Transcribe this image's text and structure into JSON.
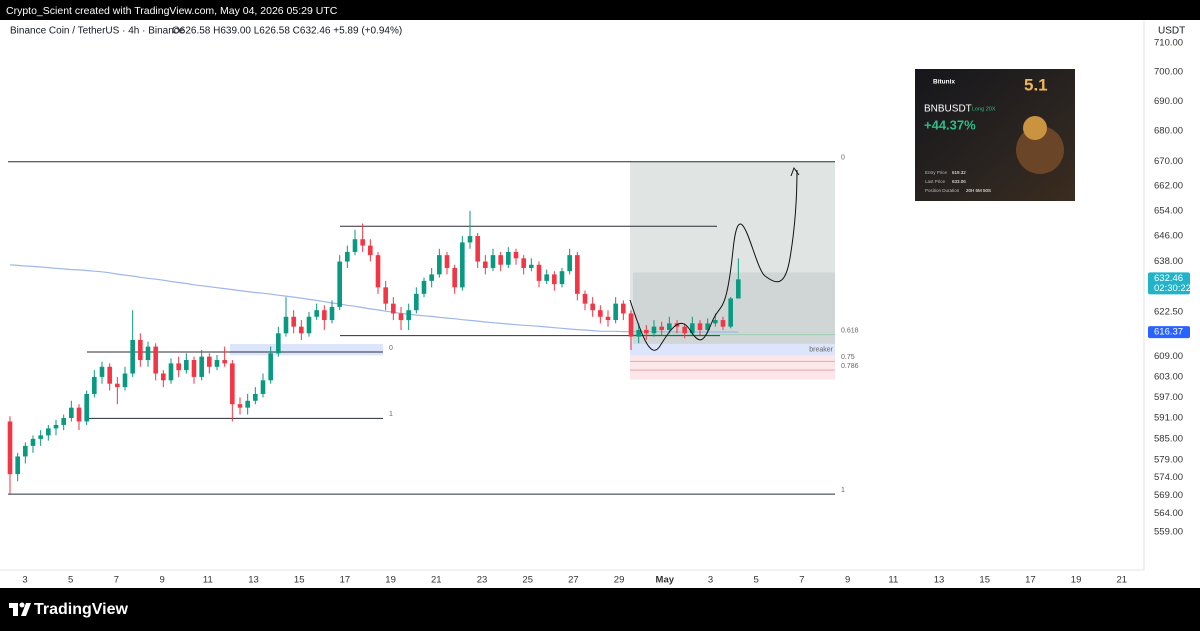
{
  "chart_data": {
    "type": "candlestick",
    "credit": "Crypto_Scient created with TradingView.com, May 04, 2026 05:29 UTC",
    "symbol": "Binance Coin / TetherUS · 4h · Binance",
    "ohlc": "O626.58  H639.00  L626.58  C632.46  +5.89 (+0.94%)",
    "currency": "USDT",
    "countdown": "02:30:22",
    "brand": "TradingView",
    "log_scale": true,
    "grid": false,
    "up_color": "#089981",
    "down_color": "#f23645",
    "ma_color": "#9db7ea",
    "ylim": [
      549.2,
      718
    ],
    "yticks": [
      {
        "value": 710,
        "label": "710.00"
      },
      {
        "value": 700,
        "label": "700.00"
      },
      {
        "value": 690,
        "label": "690.00"
      },
      {
        "value": 680,
        "label": "680.00"
      },
      {
        "value": 670,
        "label": "670.00"
      },
      {
        "value": 662,
        "label": "662.00"
      },
      {
        "value": 654,
        "label": "654.00"
      },
      {
        "value": 646,
        "label": "646.00"
      },
      {
        "value": 638,
        "label": "638.00"
      },
      {
        "value": 622.5,
        "label": "622.50"
      },
      {
        "value": 609,
        "label": "609.00"
      },
      {
        "value": 603,
        "label": "603.00"
      },
      {
        "value": 597,
        "label": "597.00"
      },
      {
        "value": 591,
        "label": "591.00"
      },
      {
        "value": 585,
        "label": "585.00"
      },
      {
        "value": 579,
        "label": "579.00"
      },
      {
        "value": 574,
        "label": "574.00"
      },
      {
        "value": 569,
        "label": "569.00"
      },
      {
        "value": 564,
        "label": "564.00"
      },
      {
        "value": 559,
        "label": "559.00"
      }
    ],
    "x_labels": [
      "3",
      "5",
      "7",
      "9",
      "11",
      "13",
      "15",
      "17",
      "19",
      "21",
      "23",
      "25",
      "27",
      "29",
      "May",
      "3",
      "5",
      "7",
      "9",
      "11",
      "13",
      "15",
      "17",
      "19",
      "21"
    ],
    "candles": [
      [
        590,
        591.5,
        569.5,
        575
      ],
      [
        575,
        581,
        573,
        580
      ],
      [
        580,
        584,
        578,
        583
      ],
      [
        583,
        586,
        581,
        585
      ],
      [
        585,
        587.5,
        583,
        586
      ],
      [
        586,
        589,
        584.5,
        588
      ],
      [
        588,
        590.5,
        586,
        589
      ],
      [
        589,
        592,
        587.5,
        591
      ],
      [
        591,
        596,
        590,
        594
      ],
      [
        594,
        595,
        587.5,
        590
      ],
      [
        590,
        599,
        589,
        598
      ],
      [
        598,
        605,
        597,
        603
      ],
      [
        603,
        607.5,
        601,
        606
      ],
      [
        606,
        607,
        599,
        601
      ],
      [
        601,
        603,
        595,
        600
      ],
      [
        600,
        606,
        599,
        604
      ],
      [
        604,
        623,
        603,
        614
      ],
      [
        614,
        616,
        606,
        608
      ],
      [
        608,
        613.5,
        606,
        612
      ],
      [
        612,
        613,
        602,
        604
      ],
      [
        604,
        605,
        600,
        602
      ],
      [
        602,
        608.5,
        601,
        607
      ],
      [
        607,
        609,
        603,
        605
      ],
      [
        605,
        610,
        604,
        608
      ],
      [
        608,
        609,
        601,
        603
      ],
      [
        603,
        611,
        602,
        609
      ],
      [
        609,
        610,
        604,
        606
      ],
      [
        606,
        609.5,
        605,
        608
      ],
      [
        608,
        612,
        606,
        607
      ],
      [
        607,
        608,
        590,
        595
      ],
      [
        595,
        597,
        592,
        594
      ],
      [
        594,
        598,
        592,
        596
      ],
      [
        596,
        600,
        595,
        598
      ],
      [
        598,
        604,
        597,
        602
      ],
      [
        602,
        612,
        601,
        610
      ],
      [
        610,
        618,
        609,
        616
      ],
      [
        616,
        627,
        615,
        621
      ],
      [
        621,
        623,
        616,
        618
      ],
      [
        618,
        620,
        614,
        616
      ],
      [
        616,
        622.5,
        615,
        621
      ],
      [
        621,
        625,
        620,
        623
      ],
      [
        623,
        624.5,
        617,
        620
      ],
      [
        620,
        626,
        619,
        624
      ],
      [
        624,
        640,
        623,
        638
      ],
      [
        638,
        643,
        636,
        641
      ],
      [
        641,
        648,
        640,
        645
      ],
      [
        645,
        650,
        641,
        643
      ],
      [
        643,
        645,
        638,
        640
      ],
      [
        640,
        641,
        628,
        630
      ],
      [
        630,
        632,
        623,
        625
      ],
      [
        625,
        627,
        620,
        622
      ],
      [
        622,
        624,
        617,
        620
      ],
      [
        620,
        625,
        617,
        623
      ],
      [
        623,
        630,
        622,
        628
      ],
      [
        628,
        633,
        627,
        632
      ],
      [
        632,
        636,
        630,
        634
      ],
      [
        634,
        642,
        633,
        640
      ],
      [
        640,
        641,
        634,
        636
      ],
      [
        636,
        637,
        628,
        630
      ],
      [
        630,
        646,
        629,
        644
      ],
      [
        644,
        654,
        642,
        646
      ],
      [
        646,
        647,
        636,
        638
      ],
      [
        638,
        640,
        634,
        636
      ],
      [
        636,
        642,
        635,
        640
      ],
      [
        640,
        641,
        635,
        637
      ],
      [
        637,
        642.5,
        636,
        641
      ],
      [
        641,
        642,
        637,
        639
      ],
      [
        639,
        640,
        634,
        636
      ],
      [
        636,
        639,
        635,
        637
      ],
      [
        637,
        638,
        630,
        632
      ],
      [
        632,
        635.5,
        631,
        634
      ],
      [
        634,
        635,
        629,
        631
      ],
      [
        631,
        636,
        630,
        635
      ],
      [
        635,
        642,
        634,
        640
      ],
      [
        640,
        641,
        626,
        628
      ],
      [
        628,
        629,
        623,
        625
      ],
      [
        625,
        627,
        621,
        623
      ],
      [
        623,
        624.5,
        619,
        621
      ],
      [
        621,
        623,
        618,
        620
      ],
      [
        620,
        627,
        619,
        625
      ],
      [
        625,
        626,
        620,
        622
      ],
      [
        622,
        623,
        611,
        615
      ],
      [
        615,
        619,
        613,
        617
      ],
      [
        617,
        618.5,
        614,
        616
      ],
      [
        616,
        620,
        615,
        618
      ],
      [
        618,
        619.5,
        615.5,
        617
      ],
      [
        617,
        621,
        616,
        619
      ],
      [
        619,
        620,
        616,
        618
      ],
      [
        618,
        619,
        614.5,
        616
      ],
      [
        616,
        621,
        615.5,
        619
      ],
      [
        619,
        620,
        615.5,
        617
      ],
      [
        617,
        620.5,
        616,
        619
      ],
      [
        619,
        622,
        618,
        620
      ],
      [
        620,
        621,
        617,
        618
      ],
      [
        618,
        627,
        617.5,
        626.58
      ],
      [
        626.58,
        639,
        626.58,
        632.46
      ]
    ],
    "ma": [
      637.0,
      636.8,
      636.6,
      636.5,
      636.3,
      636.1,
      635.9,
      635.7,
      635.5,
      635.4,
      635.2,
      635.0,
      634.8,
      634.5,
      634.1,
      633.8,
      633.5,
      633.1,
      632.8,
      632.5,
      632.2,
      631.8,
      631.5,
      631.2,
      630.8,
      630.5,
      630.2,
      629.9,
      629.6,
      629.3,
      629.0,
      628.7,
      628.4,
      628.2,
      627.9,
      627.6,
      627.3,
      627.0,
      626.7,
      626.3,
      626.0,
      625.6,
      625.2,
      624.9,
      624.5,
      624.2,
      623.8,
      623.4,
      623.1,
      622.7,
      622.4,
      622.0,
      621.8,
      621.5,
      621.3,
      621.1,
      620.8,
      620.6,
      620.4,
      620.1,
      619.9,
      619.7,
      619.4,
      619.2,
      619.0,
      618.8,
      618.6,
      618.4,
      618.3,
      618.1,
      617.9,
      617.7,
      617.5,
      617.3,
      617.1,
      617.0,
      616.8,
      616.6,
      616.6,
      616.6,
      616.5,
      616.5,
      616.5,
      616.5,
      616.5,
      616.5,
      616.4,
      616.4,
      616.4,
      616.4,
      616.4,
      616.4,
      616.4,
      616.4,
      616.4,
      616.37
    ],
    "zones": [
      {
        "top": 670,
        "bottom": 612.8,
        "color": "#e0e5e4"
      },
      {
        "top": 634.6,
        "bottom": 612.8,
        "color": "#cfd6d5"
      },
      {
        "top": 612.8,
        "bottom": 602.2,
        "color": "#fbe6ea"
      },
      {
        "top": 612.8,
        "bottom": 609.4,
        "color": "#dce5fb"
      },
      {
        "top": 612.8,
        "bottom": 609.4,
        "color": "#dce5fb",
        "label": "breaker"
      }
    ],
    "levels": [
      {
        "price": 669.9,
        "label": "0"
      },
      {
        "price": 569.4,
        "label": "1"
      },
      {
        "price": 610.4,
        "label": "0"
      },
      {
        "price": 590.9,
        "label": "1"
      },
      {
        "price": 649.1
      },
      {
        "price": 615.3
      },
      {
        "price": 615.6,
        "label": "0.618",
        "color": "#9fd0b4"
      },
      {
        "price": 607.6,
        "label": "0.75",
        "color": "#e9a7b0"
      },
      {
        "price": 605.0,
        "label": "0.786",
        "color": "#e9a7b0"
      }
    ],
    "ad": {
      "brand": "Bitunix",
      "badge": "5.1",
      "pair": "BNBUSDT",
      "side": "Long 20X",
      "pnl": "+44.37%",
      "entry_label": "Entry Price",
      "entry": "619.32",
      "last_label": "Last Price",
      "last": "633.06",
      "duration_label": "Position Duration",
      "duration": "20H 6M 50S"
    }
  }
}
